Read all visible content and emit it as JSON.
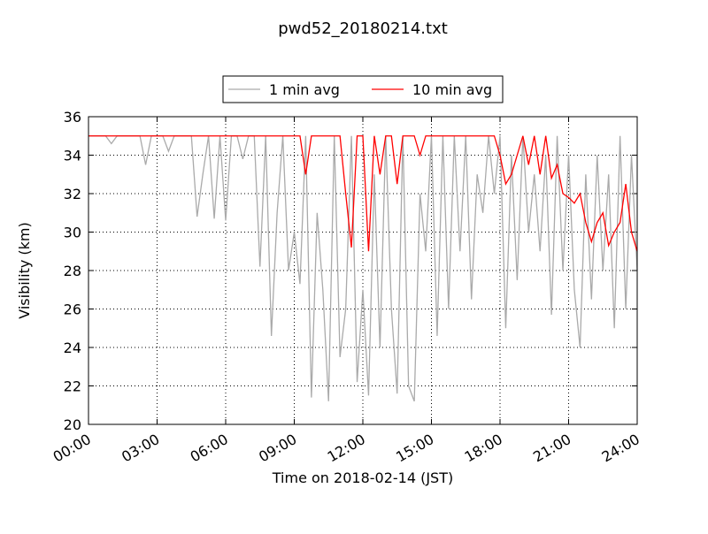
{
  "chart_data": {
    "type": "line",
    "title": "pwd52_20180214.txt",
    "x_label": "Time on 2018-02-14 (JST)",
    "y_label": "Visibility (km)",
    "xlim": [
      0,
      24
    ],
    "ylim": [
      20,
      36
    ],
    "xticks": [
      {
        "value": 0,
        "label": "00:00"
      },
      {
        "value": 3,
        "label": "03:00"
      },
      {
        "value": 6,
        "label": "06:00"
      },
      {
        "value": 9,
        "label": "09:00"
      },
      {
        "value": 12,
        "label": "12:00"
      },
      {
        "value": 15,
        "label": "15:00"
      },
      {
        "value": 18,
        "label": "18:00"
      },
      {
        "value": 21,
        "label": "21:00"
      },
      {
        "value": 24,
        "label": "24:00"
      }
    ],
    "yticks": [
      20,
      22,
      24,
      26,
      28,
      30,
      32,
      34,
      36
    ],
    "grid": true,
    "legend": "top",
    "x": [
      0,
      0.25,
      0.5,
      0.75,
      1,
      1.25,
      1.5,
      1.75,
      2,
      2.25,
      2.5,
      2.75,
      3,
      3.25,
      3.5,
      3.75,
      4,
      4.25,
      4.5,
      4.75,
      5,
      5.25,
      5.5,
      5.75,
      6,
      6.25,
      6.5,
      6.75,
      7,
      7.25,
      7.5,
      7.75,
      8,
      8.25,
      8.5,
      8.75,
      9,
      9.25,
      9.5,
      9.75,
      10,
      10.25,
      10.5,
      10.75,
      11,
      11.25,
      11.5,
      11.75,
      12,
      12.25,
      12.5,
      12.75,
      13,
      13.25,
      13.5,
      13.75,
      14,
      14.25,
      14.5,
      14.75,
      15,
      15.25,
      15.5,
      15.75,
      16,
      16.25,
      16.5,
      16.75,
      17,
      17.25,
      17.5,
      17.75,
      18,
      18.25,
      18.5,
      18.75,
      19,
      19.25,
      19.5,
      19.75,
      20,
      20.25,
      20.5,
      20.75,
      21,
      21.25,
      21.5,
      21.75,
      22,
      22.25,
      22.5,
      22.75,
      23,
      23.25,
      23.5,
      23.75,
      24
    ],
    "series": [
      {
        "name": "1 min avg",
        "color": "#aaaaaa",
        "values": [
          35,
          35,
          35,
          35,
          34.6,
          35,
          35,
          35,
          35,
          35,
          33.5,
          35,
          35,
          35,
          34.2,
          35,
          35,
          35,
          35,
          30.8,
          33,
          35,
          30.7,
          35,
          30.6,
          35,
          35,
          33.8,
          35,
          35,
          28.2,
          35,
          24.6,
          31,
          35,
          28,
          30,
          27.3,
          35,
          21.4,
          31,
          27,
          21.2,
          35,
          23.5,
          26,
          35,
          22.2,
          27,
          21.5,
          33,
          24,
          35,
          26,
          21.6,
          35,
          22,
          21.2,
          32,
          29,
          35,
          24.6,
          35,
          26,
          35,
          29,
          35,
          26.5,
          33,
          31,
          35,
          32,
          35,
          25,
          34,
          27.5,
          35,
          30,
          33,
          29,
          34,
          25.7,
          35,
          28,
          34,
          27,
          24,
          33,
          26.5,
          34,
          28,
          33,
          25,
          35,
          26,
          34,
          28
        ]
      },
      {
        "name": "10 min avg",
        "color": "#ff0000",
        "values": [
          35,
          35,
          35,
          35,
          35,
          35,
          35,
          35,
          35,
          35,
          35,
          35,
          35,
          35,
          35,
          35,
          35,
          35,
          35,
          35,
          35,
          35,
          35,
          35,
          35,
          35,
          35,
          35,
          35,
          35,
          35,
          35,
          35,
          35,
          35,
          35,
          35,
          35,
          33,
          35,
          35,
          35,
          35,
          35,
          35,
          32,
          29.2,
          35,
          35,
          29,
          35,
          33,
          35,
          35,
          32.5,
          35,
          35,
          35,
          34,
          35,
          35,
          35,
          35,
          35,
          35,
          35,
          35,
          35,
          35,
          35,
          35,
          35,
          34,
          32.5,
          33,
          34,
          35,
          33.5,
          35,
          33,
          35,
          32.8,
          33.5,
          32,
          31.8,
          31.5,
          32,
          30.5,
          29.5,
          30.5,
          31,
          29.3,
          30,
          30.5,
          32.5,
          30,
          29
        ]
      }
    ]
  }
}
